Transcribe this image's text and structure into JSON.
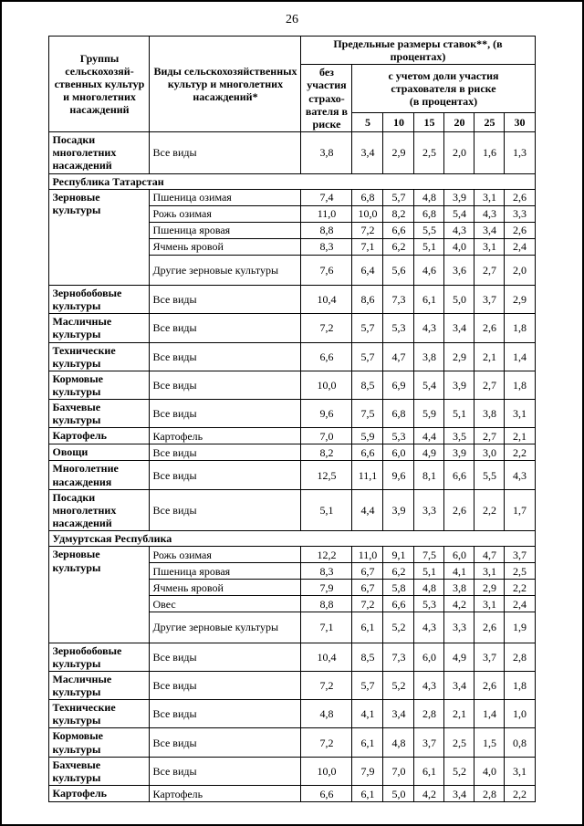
{
  "page": {
    "number": "26"
  },
  "table": {
    "header": {
      "groups_label": "Группы сельскохозяй-ственных культур и многолетних насаждений",
      "types_label": "Виды сельскохозяйственных культур и многолетних насаждений*",
      "rates_label": "Предельные размеры ставок**,  (в процентах)",
      "no_participation_label": "без участия страхо-вателя в риске",
      "participation_label": "с учетом доли участия страхователя в риске",
      "participation_sublabel": "(в процентах)",
      "percent_columns": [
        "5",
        "10",
        "15",
        "20",
        "25",
        "30"
      ]
    },
    "rows": [
      {
        "kind": "data",
        "group": "Посадки многолетних насаждений",
        "group_rowspan": 1,
        "type": "Все виды",
        "values": [
          "3,8",
          "3,4",
          "2,9",
          "2,5",
          "2,0",
          "1,6",
          "1,3"
        ]
      },
      {
        "kind": "section",
        "title": "Республика Татарстан"
      },
      {
        "kind": "data",
        "group": "Зерновые культуры",
        "group_rowspan": 5,
        "type": "Пшеница озимая",
        "values": [
          "7,4",
          "6,8",
          "5,7",
          "4,8",
          "3,9",
          "3,1",
          "2,6"
        ]
      },
      {
        "kind": "data",
        "type": "Рожь озимая",
        "values": [
          "11,0",
          "10,0",
          "8,2",
          "6,8",
          "5,4",
          "4,3",
          "3,3"
        ]
      },
      {
        "kind": "data",
        "type": "Пшеница яровая",
        "values": [
          "8,8",
          "7,2",
          "6,6",
          "5,5",
          "4,3",
          "3,4",
          "2,6"
        ]
      },
      {
        "kind": "data",
        "type": "Ячмень яровой",
        "values": [
          "8,3",
          "7,1",
          "6,2",
          "5,1",
          "4,0",
          "3,1",
          "2,4"
        ]
      },
      {
        "kind": "data",
        "type": "Другие зерновые культуры",
        "tall": true,
        "values": [
          "7,6",
          "6,4",
          "5,6",
          "4,6",
          "3,6",
          "2,7",
          "2,0"
        ]
      },
      {
        "kind": "data",
        "group": "Зернобобовые культуры",
        "group_rowspan": 1,
        "type": "Все виды",
        "values": [
          "10,4",
          "8,6",
          "7,3",
          "6,1",
          "5,0",
          "3,7",
          "2,9"
        ]
      },
      {
        "kind": "data",
        "group": "Масличные культуры",
        "group_rowspan": 1,
        "type": "Все виды",
        "values": [
          "7,2",
          "5,7",
          "5,3",
          "4,3",
          "3,4",
          "2,6",
          "1,8"
        ]
      },
      {
        "kind": "data",
        "group": "Технические культуры",
        "group_rowspan": 1,
        "type": "Все виды",
        "values": [
          "6,6",
          "5,7",
          "4,7",
          "3,8",
          "2,9",
          "2,1",
          "1,4"
        ]
      },
      {
        "kind": "data",
        "group": "Кормовые культуры",
        "group_rowspan": 1,
        "type": "Все виды",
        "values": [
          "10,0",
          "8,5",
          "6,9",
          "5,4",
          "3,9",
          "2,7",
          "1,8"
        ]
      },
      {
        "kind": "data",
        "group": "Бахчевые культуры",
        "group_rowspan": 1,
        "type": "Все виды",
        "values": [
          "9,6",
          "7,5",
          "6,8",
          "5,9",
          "5,1",
          "3,8",
          "3,1"
        ]
      },
      {
        "kind": "data",
        "group": "Картофель",
        "group_rowspan": 1,
        "type": "Картофель",
        "values": [
          "7,0",
          "5,9",
          "5,3",
          "4,4",
          "3,5",
          "2,7",
          "2,1"
        ]
      },
      {
        "kind": "data",
        "group": "Овощи",
        "group_rowspan": 1,
        "type": "Все виды",
        "values": [
          "8,2",
          "6,6",
          "6,0",
          "4,9",
          "3,9",
          "3,0",
          "2,2"
        ]
      },
      {
        "kind": "data",
        "group": "Многолетние насаждения",
        "group_rowspan": 1,
        "type": "Все виды",
        "values": [
          "12,5",
          "11,1",
          "9,6",
          "8,1",
          "6,6",
          "5,5",
          "4,3"
        ]
      },
      {
        "kind": "data",
        "group": "Посадки многолетних насаждений",
        "group_rowspan": 1,
        "type": "Все виды",
        "values": [
          "5,1",
          "4,4",
          "3,9",
          "3,3",
          "2,6",
          "2,2",
          "1,7"
        ]
      },
      {
        "kind": "section",
        "title": "Удмуртская Республика"
      },
      {
        "kind": "data",
        "group": "Зерновые культуры",
        "group_rowspan": 5,
        "type": "Рожь озимая",
        "values": [
          "12,2",
          "11,0",
          "9,1",
          "7,5",
          "6,0",
          "4,7",
          "3,7"
        ]
      },
      {
        "kind": "data",
        "type": "Пшеница яровая",
        "values": [
          "8,3",
          "6,7",
          "6,2",
          "5,1",
          "4,1",
          "3,1",
          "2,5"
        ]
      },
      {
        "kind": "data",
        "type": "Ячмень яровой",
        "values": [
          "7,9",
          "6,7",
          "5,8",
          "4,8",
          "3,8",
          "2,9",
          "2,2"
        ]
      },
      {
        "kind": "data",
        "type": "Овес",
        "values": [
          "8,8",
          "7,2",
          "6,6",
          "5,3",
          "4,2",
          "3,1",
          "2,4"
        ]
      },
      {
        "kind": "data",
        "type": "Другие зерновые культуры",
        "tall": true,
        "values": [
          "7,1",
          "6,1",
          "5,2",
          "4,3",
          "3,3",
          "2,6",
          "1,9"
        ]
      },
      {
        "kind": "data",
        "group": "Зернобобовые культуры",
        "group_rowspan": 1,
        "type": "Все виды",
        "values": [
          "10,4",
          "8,5",
          "7,3",
          "6,0",
          "4,9",
          "3,7",
          "2,8"
        ]
      },
      {
        "kind": "data",
        "group": "Масличные культуры",
        "group_rowspan": 1,
        "type": "Все виды",
        "values": [
          "7,2",
          "5,7",
          "5,2",
          "4,3",
          "3,4",
          "2,6",
          "1,8"
        ]
      },
      {
        "kind": "data",
        "group": "Технические культуры",
        "group_rowspan": 1,
        "type": "Все виды",
        "values": [
          "4,8",
          "4,1",
          "3,4",
          "2,8",
          "2,1",
          "1,4",
          "1,0"
        ]
      },
      {
        "kind": "data",
        "group": "Кормовые культуры",
        "group_rowspan": 1,
        "type": "Все виды",
        "values": [
          "7,2",
          "6,1",
          "4,8",
          "3,7",
          "2,5",
          "1,5",
          "0,8"
        ]
      },
      {
        "kind": "data",
        "group": "Бахчевые культуры",
        "group_rowspan": 1,
        "type": "Все виды",
        "values": [
          "10,0",
          "7,9",
          "7,0",
          "6,1",
          "5,2",
          "4,0",
          "3,1"
        ]
      },
      {
        "kind": "data",
        "group": "Картофель",
        "group_rowspan": 1,
        "type": "Картофель",
        "values": [
          "6,6",
          "6,1",
          "5,0",
          "4,2",
          "3,4",
          "2,8",
          "2,2"
        ]
      }
    ]
  }
}
